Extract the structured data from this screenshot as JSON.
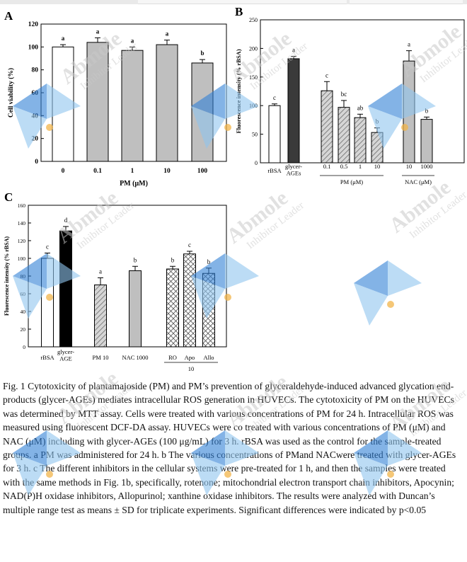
{
  "chart_data": [
    {
      "type": "bar",
      "panel_label": "A",
      "categories": [
        "0",
        "0.1",
        "1",
        "10",
        "100"
      ],
      "values": [
        100,
        104,
        97,
        102,
        86
      ],
      "errors": [
        2,
        4,
        3,
        4,
        3
      ],
      "letters": [
        "a",
        "a",
        "a",
        "a",
        "b"
      ],
      "fills": [
        "white",
        "gray",
        "gray",
        "gray",
        "gray"
      ],
      "xlabel": "PM (μM)",
      "ylabel": "Cell viability (%)",
      "ylim": [
        0,
        120
      ],
      "yticks": [
        "0",
        "20",
        "40",
        "60",
        "80",
        "100",
        "120"
      ],
      "grid": false
    },
    {
      "type": "bar",
      "panel_label": "B",
      "categories": [
        "rBSA",
        "glycer-AGEs",
        "0.1",
        "0.5",
        "1",
        "10",
        "10",
        "1000"
      ],
      "values": [
        100,
        182,
        126,
        97,
        79,
        53,
        178,
        76
      ],
      "errors": [
        3,
        4,
        16,
        12,
        6,
        8,
        18,
        4
      ],
      "letters": [
        "c",
        "a",
        "c",
        "bc",
        "ab",
        "b",
        "a",
        "b"
      ],
      "group_labels": [
        "PM (μM)",
        "NAC (μM)"
      ],
      "xlabel": "",
      "ylabel": "Fluorescence intensity (% rBSA)",
      "ylim": [
        0,
        250
      ],
      "yticks": [
        "0",
        "50",
        "100",
        "150",
        "200",
        "250"
      ],
      "grid": false
    },
    {
      "type": "bar",
      "panel_label": "C",
      "categories": [
        "rBSA",
        "glycer-AGE",
        "PM 10",
        "NAC 1000",
        "RO",
        "Apo",
        "Allo"
      ],
      "values": [
        100,
        131,
        70,
        86,
        88,
        105,
        83
      ],
      "errors": [
        6,
        5,
        8,
        5,
        3,
        3,
        6
      ],
      "letters": [
        "c",
        "d",
        "a",
        "b",
        "b",
        "c",
        "b"
      ],
      "group_labels": [
        "10"
      ],
      "xlabel": "",
      "ylabel": "Fluorescence intensity (% rBSA)",
      "ylim": [
        0,
        160
      ],
      "yticks": [
        "0",
        "20",
        "40",
        "60",
        "80",
        "100",
        "120",
        "140",
        "160"
      ],
      "grid": false
    }
  ],
  "caption": "Fig. 1 Cytotoxicity of plantamajoside (PM) and PM’s prevention of glyceraldehyde-induced advanced glycation end-products (glycer-AGEs) mediates intracellular ROS generation in HUVECs. The cytotoxicity of PM on the HUVECs was determined by MTT assay. Cells were treated with various concentrations of PM for 24 h. Intracellular ROS was measured using fluorescent DCF-DA assay. HUVECs were co treated with various concentrations of PM (μM) and NAC (μM) including with glycer-AGEs (100 μg/mL) for 3 h. rBSA was used as the control for the sample-treated groups. a PM was administered for 24 h. b The various concentrations of PMand NACwere treated with glycer-AGEs for 3 h. c The different inhibitors in the cellular systems were pre-treated for 1 h, and then the samples were treated with the same methods in Fig. 1b, specifically, rotenone; mitochondrial electron transport chain inhibitors, Apocynin; NAD(P)H oxidase inhibitors, Allopurinol; xanthine oxidase inhibitors. The results were analyzed with Duncan’s multiple range test as means ± SD for triplicate experiments. Significant differences were indicated by p<0.05",
  "watermark": {
    "brand": "Abmole",
    "tagline": "Inhibitor Leader",
    "colors": {
      "text": "#c9c9c9",
      "blue_dark": "#2f7fd6",
      "blue_light": "#8fc4ee",
      "dot": "#f2b54a"
    }
  },
  "colors": {
    "white_bar": "#ffffff",
    "gray_bar": "#bfbfbf",
    "dark_bar": "#3a3a3a",
    "black_bar": "#000000",
    "axis": "#000000"
  }
}
